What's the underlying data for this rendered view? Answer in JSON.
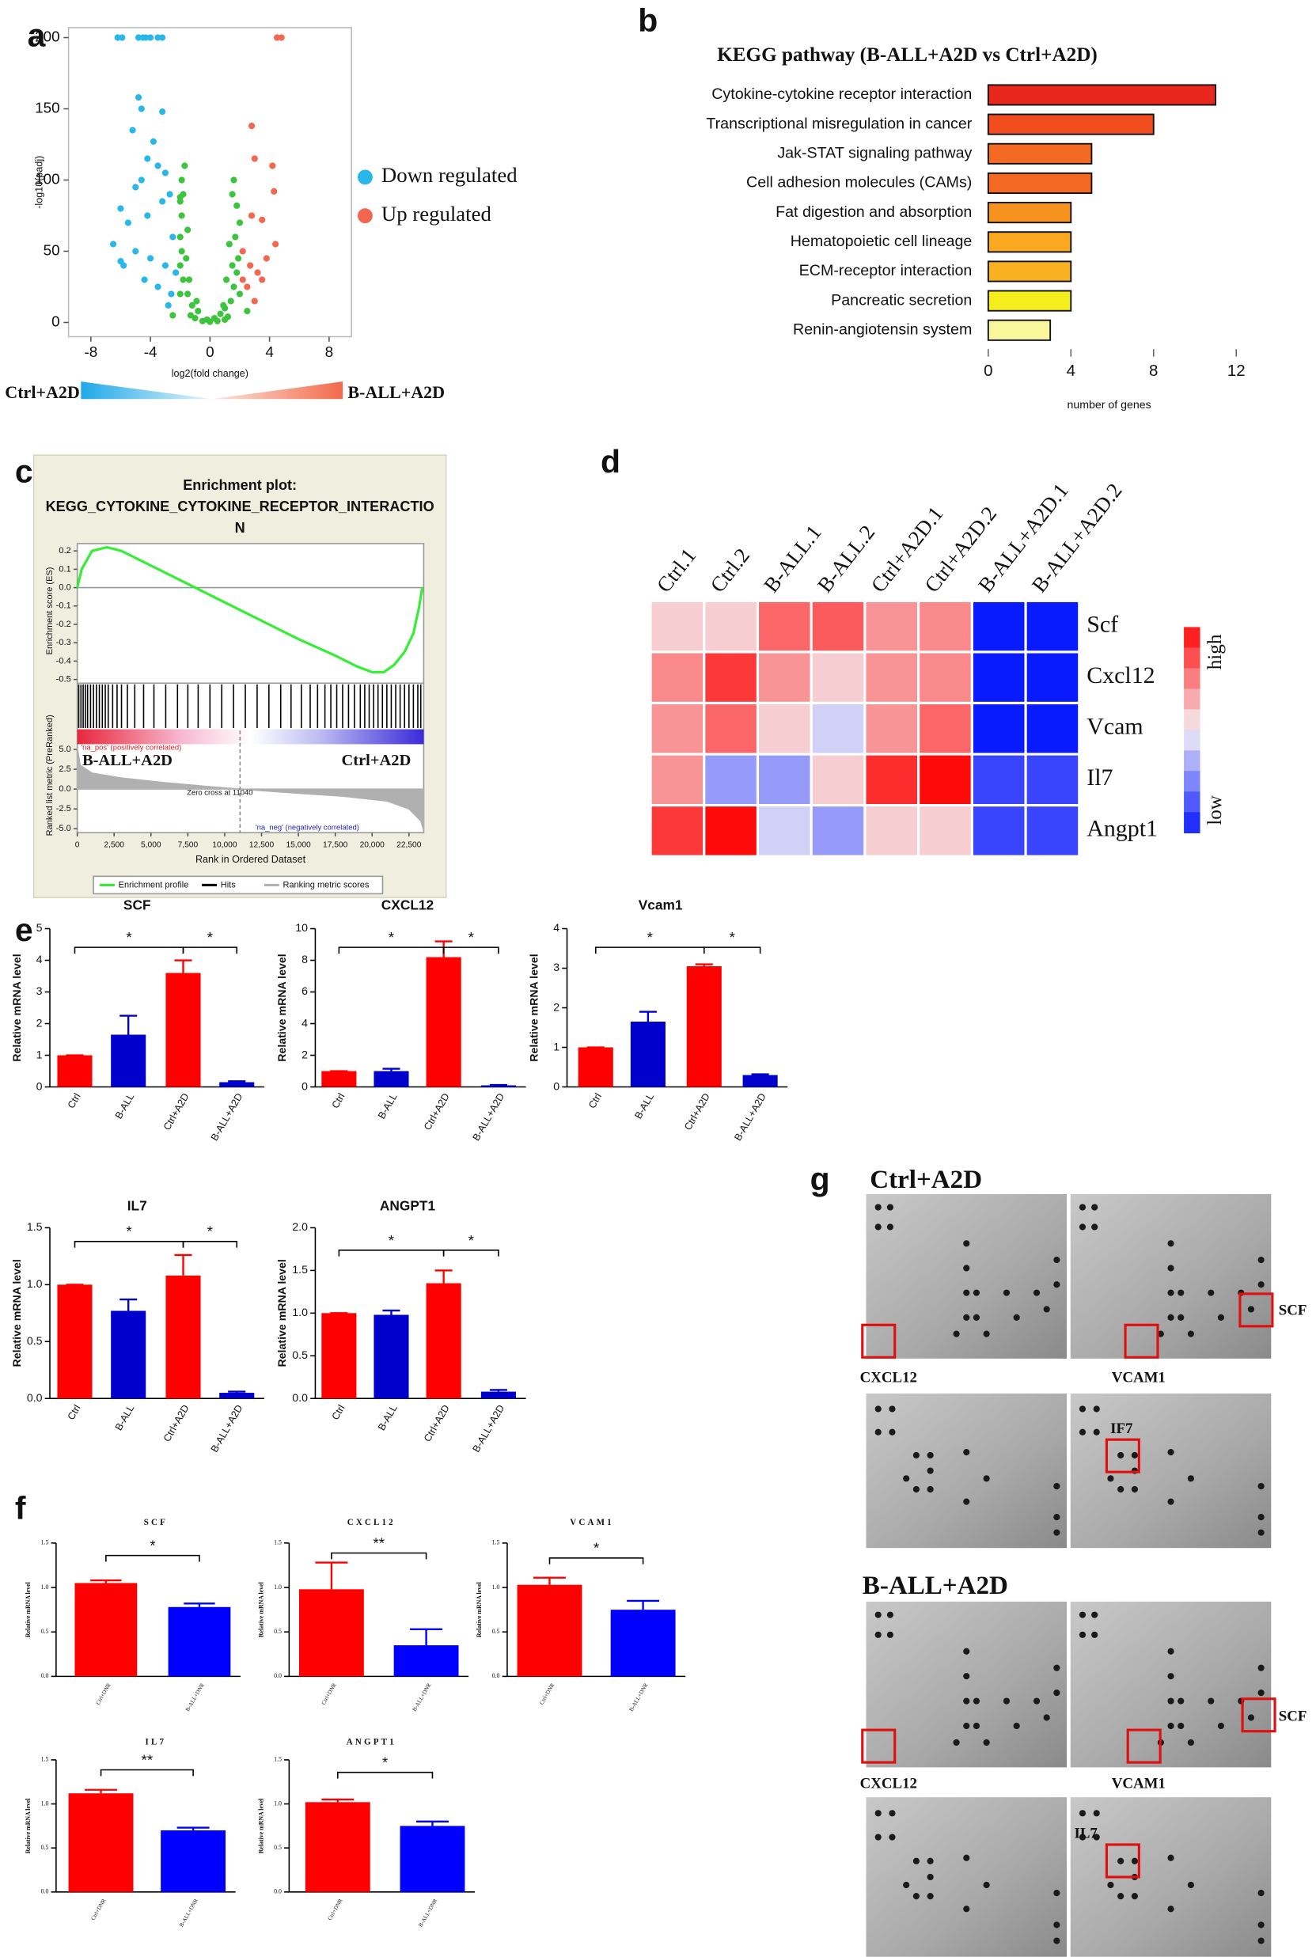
{
  "panel_labels": [
    "a",
    "b",
    "c",
    "d",
    "e",
    "f",
    "g"
  ],
  "chart_data": [
    {
      "type": "scatter",
      "xlabel": "log2(fold change)",
      "ylabel": "-log10(padj)",
      "xlim": [
        -9.5,
        9.5
      ],
      "xticks": [
        -8,
        -4,
        0,
        4,
        8
      ],
      "ylim": [
        -10,
        207
      ],
      "yticks": [
        0,
        50,
        100,
        150,
        200
      ],
      "legend": "right",
      "group_labels": [
        "Ctrl+A2D",
        "B-ALL+A2D"
      ],
      "series": [
        {
          "name": "Down regulated",
          "color": "#29b6e8",
          "x": [
            -6.2,
            -5.9,
            -4.8,
            -4.5,
            -4.3,
            -4,
            -3.5,
            -3.2,
            -4.8,
            -4.6,
            -5.2,
            -3.2,
            -3.8,
            -4.2,
            -3.5,
            -4.6,
            -5,
            -3,
            -6,
            -5.5,
            -4.2,
            -3.2,
            -2.7,
            -6.5,
            -5,
            -4,
            -3,
            -5.8,
            -2.5,
            -3.5,
            -2.6,
            -4.4,
            -2.3,
            -2.8,
            -6
          ],
          "values": [
            200,
            200,
            200,
            200,
            200,
            200,
            200,
            200,
            158,
            150,
            135,
            148,
            127,
            115,
            110,
            100,
            95,
            105,
            80,
            70,
            75,
            85,
            90,
            55,
            50,
            45,
            40,
            40,
            60,
            25,
            20,
            30,
            35,
            12,
            43
          ]
        },
        {
          "name": "Up regulated",
          "color": "#f2674f",
          "x": [
            4.5,
            4.8,
            2.8,
            3,
            4.2,
            4.3,
            3.5,
            2.8,
            4.4,
            2.2,
            2.7,
            3.5,
            3.8,
            2.5,
            3,
            2.2,
            3.2
          ],
          "values": [
            200,
            200,
            138,
            115,
            110,
            92,
            72,
            75,
            55,
            50,
            40,
            30,
            45,
            25,
            15,
            30,
            35
          ]
        },
        {
          "color": "#3cc43c",
          "x": [
            -0.2,
            0.3,
            -0.8,
            0.7,
            -1.2,
            1,
            -1.5,
            1.4,
            -1.8,
            1.6,
            -2,
            1.8,
            -1.9,
            1.9,
            -2,
            1.7,
            -1.9,
            2,
            -1.8,
            1.5,
            -1.9,
            1.6,
            -1.7,
            1.8,
            -1.3,
            1.2,
            -2,
            2,
            -0.5,
            0.5,
            -1,
            1,
            -1.6,
            1.5,
            -1.5,
            1.3,
            -2,
            -1.4,
            1.1,
            0,
            -2.5,
            2.5,
            -0.9,
            0.9,
            -2
          ],
          "values": [
            2,
            3,
            8,
            6,
            12,
            10,
            20,
            15,
            30,
            25,
            40,
            35,
            50,
            45,
            60,
            60,
            75,
            70,
            90,
            90,
            100,
            100,
            110,
            82,
            5,
            4,
            20,
            20,
            1,
            1,
            3,
            2,
            45,
            40,
            65,
            55,
            85,
            30,
            30,
            0.5,
            5,
            8,
            15,
            12,
            88
          ]
        }
      ]
    },
    {
      "type": "bar",
      "orientation": "horizontal",
      "title": "KEGG pathway (B-ALL+A2D vs Ctrl+A2D)",
      "xlabel": "number of genes",
      "categories": [
        "Cytokine-cytokine receptor interaction",
        "Transcriptional misregulation in cancer",
        "Jak-STAT signaling pathway",
        "Cell adhesion molecules (CAMs)",
        "Fat digestion and absorption",
        "Hematopoietic cell lineage",
        "ECM-receptor interaction",
        "Pancreatic secretion",
        "Renin-angiotensin system"
      ],
      "values": [
        11,
        8,
        5,
        5,
        4,
        4,
        4,
        4,
        3
      ],
      "colors": [
        "#e8261b",
        "#f24d1f",
        "#f56a22",
        "#f56a22",
        "#f7921f",
        "#f9a820",
        "#f9b021",
        "#f5ee1c",
        "#f9f79c"
      ],
      "xlim": [
        0,
        12
      ],
      "xticks": [
        0,
        4,
        8,
        12
      ]
    },
    {
      "type": "line",
      "title": [
        "Enrichment plot:",
        "KEGG_CYTOKINE_CYTOKINE_RECEPTOR_INTERACTIO",
        "N"
      ],
      "xlabel": "Rank in Ordered Dataset",
      "ylabel": "Enrichment score (ES)",
      "y2label": "Ranked list metric (PreRanked)",
      "xlim": [
        0,
        23500
      ],
      "xticks": [
        0,
        {
          "value": 2500,
          "label": "2,500"
        },
        {
          "value": 5000,
          "label": "5,000"
        },
        {
          "value": 7500,
          "label": "7,500"
        },
        {
          "value": 10000,
          "label": "10,000"
        },
        {
          "value": 12500,
          "label": "12,500"
        },
        {
          "value": 15000,
          "label": "15,000"
        },
        {
          "value": 17500,
          "label": "17,500"
        },
        {
          "value": 20000,
          "label": "20,000"
        },
        {
          "value": 22500,
          "label": "22,500"
        }
      ],
      "ylim": [
        -0.52,
        0.24
      ],
      "yticks": [
        0.2,
        0.1,
        {
          "value": 0,
          "label": "0.0"
        },
        -0.1,
        -0.2,
        -0.3,
        -0.4,
        -0.5
      ],
      "y2lim": [
        -5.5,
        5.5
      ],
      "y2ticks": [
        {
          "value": 5,
          "label": "5.0"
        },
        2.5,
        {
          "value": 0,
          "label": "0.0"
        },
        -2.5,
        {
          "value": -5,
          "label": "-5.0"
        }
      ],
      "pos_label": "'na_pos' (positively correlated)",
      "neg_label": "'na_neg' (negatively correlated)",
      "zero_cross": {
        "value": 11040,
        "label": "Zero cross at 11040"
      },
      "group_labels": [
        "B-ALL+A2D",
        "Ctrl+A2D"
      ],
      "series": [
        {
          "name": "Enrichment profile",
          "color": "#33ee33",
          "x": [
            0,
            300,
            1000,
            2000,
            3000,
            5000,
            7500,
            10000,
            12500,
            15000,
            17500,
            19000,
            20000,
            20800,
            21500,
            22200,
            22800,
            23200,
            23400
          ],
          "values": [
            0,
            0.1,
            0.2,
            0.22,
            0.2,
            0.12,
            0.02,
            -0.08,
            -0.18,
            -0.28,
            -0.37,
            -0.43,
            -0.46,
            -0.46,
            -0.42,
            -0.35,
            -0.25,
            -0.1,
            0
          ]
        },
        {
          "name": "Hits",
          "color": "#000000",
          "x": [
            100,
            250,
            400,
            550,
            700,
            900,
            1100,
            1300,
            1500,
            1700,
            1900,
            2100,
            2400,
            2700,
            3000,
            3400,
            3900,
            4500,
            5200,
            6000,
            6800,
            7500,
            8200,
            9000,
            9800,
            10600,
            11400,
            12200,
            13000,
            13800,
            14500,
            15200,
            15800,
            16300,
            16800,
            17200,
            17600,
            18000,
            18400,
            18800,
            19200,
            19500,
            19800,
            20100,
            20400,
            20700,
            21000,
            21300,
            21600,
            21900,
            22200,
            22500,
            22800,
            23100,
            23300
          ]
        },
        {
          "name": "Ranking metric scores",
          "color": "#b0b0b0",
          "axis": "y2",
          "x": [
            0,
            200,
            1000,
            3000,
            6000,
            9000,
            11040,
            14000,
            18000,
            21000,
            22500,
            23300,
            23500
          ],
          "values": [
            5.2,
            3,
            2,
            1.4,
            0.8,
            0.3,
            0,
            -0.4,
            -0.9,
            -1.5,
            -2.5,
            -4,
            -5.2
          ]
        }
      ]
    },
    {
      "type": "heatmap",
      "columns": [
        "Ctrl.1",
        "Ctrl.2",
        "B-ALL.1",
        "B-ALL.2",
        "Ctrl+A2D.1",
        "Ctrl+A2D.2",
        "B-ALL+A2D.1",
        "B-ALL+A2D.2"
      ],
      "rows": [
        "Scf",
        "Cxcl12",
        "Vcam",
        "Il7",
        "Angpt1"
      ],
      "values": [
        [
          0.15,
          0.15,
          0.6,
          0.65,
          0.4,
          0.45,
          -1,
          -1
        ],
        [
          0.45,
          0.8,
          0.4,
          0.15,
          0.4,
          0.45,
          -1,
          -1
        ],
        [
          0.4,
          0.6,
          0.15,
          -0.15,
          0.4,
          0.6,
          -1,
          -1
        ],
        [
          0.4,
          -0.4,
          -0.4,
          0.15,
          0.85,
          1,
          -0.8,
          -0.8
        ],
        [
          0.8,
          1,
          -0.15,
          -0.4,
          0.15,
          0.15,
          -0.8,
          -0.8
        ]
      ],
      "zlim": [
        -1,
        1
      ],
      "low_color": "#0a1aff",
      "mid_color": "#f4f0f4",
      "high_color": "#ff0a0a",
      "colorbar_labels": [
        "high",
        "low"
      ]
    },
    {
      "type": "bar",
      "title": "SCF",
      "ylabel": "Relative mRNA level",
      "categories": [
        "Ctrl",
        "B-ALL",
        "Ctrl+A2D",
        "B-ALL+A2D"
      ],
      "values": [
        1,
        1.65,
        3.6,
        0.15
      ],
      "errors": [
        0,
        0.6,
        0.4,
        0.03
      ],
      "colors": [
        "#ff0000",
        "#0000cc",
        "#ff0000",
        "#0000cc"
      ],
      "ylim": [
        0,
        5
      ],
      "yticks": [
        0,
        1,
        2,
        3,
        4,
        5
      ],
      "significance": [
        "*",
        "*"
      ]
    },
    {
      "type": "bar",
      "title": "CXCL12",
      "ylabel": "Relative mRNA level",
      "categories": [
        "Ctrl",
        "B-ALL",
        "Ctrl+A2D",
        "B-ALL+A2D"
      ],
      "values": [
        1,
        1,
        8.2,
        0.1
      ],
      "errors": [
        0,
        0.15,
        1,
        0.02
      ],
      "colors": [
        "#ff0000",
        "#0000cc",
        "#ff0000",
        "#0000cc"
      ],
      "ylim": [
        0,
        10
      ],
      "yticks": [
        0,
        2,
        4,
        6,
        8,
        10
      ],
      "significance": [
        "*",
        "*"
      ]
    },
    {
      "type": "bar",
      "title": "Vcam1",
      "ylabel": "Relative mRNA level",
      "categories": [
        "Ctrl",
        "B-ALL",
        "Ctrl+A2D",
        "B-ALL+A2D"
      ],
      "values": [
        1,
        1.65,
        3.05,
        0.3
      ],
      "errors": [
        0,
        0.25,
        0.05,
        0.02
      ],
      "colors": [
        "#ff0000",
        "#0000cc",
        "#ff0000",
        "#0000cc"
      ],
      "ylim": [
        0,
        4
      ],
      "yticks": [
        0,
        1,
        2,
        3,
        4
      ],
      "significance": [
        "*",
        "*"
      ]
    },
    {
      "type": "bar",
      "title": "IL7",
      "ylabel": "Relative mRNA level",
      "categories": [
        "Ctrl",
        "B-ALL",
        "Ctrl+A2D",
        "B-ALL+A2D"
      ],
      "values": [
        1,
        0.77,
        1.08,
        0.05
      ],
      "errors": [
        0,
        0.1,
        0.18,
        0.01
      ],
      "colors": [
        "#ff0000",
        "#0000cc",
        "#ff0000",
        "#0000cc"
      ],
      "ylim": [
        0,
        1.5
      ],
      "yticks": [
        {
          "value": 0,
          "label": "0.0"
        },
        0.5,
        {
          "value": 1,
          "label": "1.0"
        },
        1.5
      ],
      "significance": [
        "*",
        "*"
      ]
    },
    {
      "type": "bar",
      "title": "ANGPT1",
      "ylabel": "Relative mRNA level",
      "categories": [
        "Ctrl",
        "B-ALL",
        "Ctrl+A2D",
        "B-ALL+A2D"
      ],
      "values": [
        1,
        0.98,
        1.35,
        0.08
      ],
      "errors": [
        0,
        0.05,
        0.15,
        0.02
      ],
      "colors": [
        "#ff0000",
        "#0000cc",
        "#ff0000",
        "#0000cc"
      ],
      "ylim": [
        0,
        2
      ],
      "yticks": [
        {
          "value": 0,
          "label": "0.0"
        },
        0.5,
        {
          "value": 1,
          "label": "1.0"
        },
        1.5,
        {
          "value": 2,
          "label": "2.0"
        }
      ],
      "significance": [
        "*",
        "*"
      ]
    },
    {
      "type": "bar",
      "title": "SCF",
      "ylabel": "Relative mRNA level",
      "categories": [
        "Ctrl+DNR",
        "B-ALL+DNR"
      ],
      "values": [
        1.05,
        0.78
      ],
      "errors": [
        0.03,
        0.04
      ],
      "colors": [
        "#ff0000",
        "#0000ff"
      ],
      "ylim": [
        0,
        1.5
      ],
      "yticks": [
        {
          "value": 0,
          "label": "0.0"
        },
        0.5,
        {
          "value": 1,
          "label": "1.0"
        },
        1.5
      ],
      "significance": [
        "*"
      ]
    },
    {
      "type": "bar",
      "title": "CXCL12",
      "ylabel": "Relative mRNA level",
      "categories": [
        "Ctrl+DNR",
        "B-ALL+DNR"
      ],
      "values": [
        0.98,
        0.35
      ],
      "errors": [
        0.3,
        0.18
      ],
      "colors": [
        "#ff0000",
        "#0000ff"
      ],
      "ylim": [
        0,
        1.5
      ],
      "yticks": [
        {
          "value": 0,
          "label": "0.0"
        },
        0.5,
        {
          "value": 1,
          "label": "1.0"
        },
        1.5
      ],
      "significance": [
        "**"
      ]
    },
    {
      "type": "bar",
      "title": "VCAM1",
      "ylabel": "Relative mRNA level",
      "categories": [
        "Ctrl+DNR",
        "B-ALL+DNR"
      ],
      "values": [
        1.03,
        0.75
      ],
      "errors": [
        0.08,
        0.1
      ],
      "colors": [
        "#ff0000",
        "#0000ff"
      ],
      "ylim": [
        0,
        1.5
      ],
      "yticks": [
        {
          "value": 0,
          "label": "0.0"
        },
        0.5,
        {
          "value": 1,
          "label": "1.0"
        },
        1.5
      ],
      "significance": [
        "*"
      ]
    },
    {
      "type": "bar",
      "title": "IL7",
      "ylabel": "Relative mRNA level",
      "categories": [
        "Ctrl+DNR",
        "B-ALL+DNR"
      ],
      "values": [
        1.12,
        0.7
      ],
      "errors": [
        0.04,
        0.03
      ],
      "colors": [
        "#ff0000",
        "#0000ff"
      ],
      "ylim": [
        0,
        1.5
      ],
      "yticks": [
        {
          "value": 0,
          "label": "0.0"
        },
        0.5,
        {
          "value": 1,
          "label": "1.0"
        },
        1.5
      ],
      "significance": [
        "**"
      ]
    },
    {
      "type": "bar",
      "title": "ANGPT1",
      "ylabel": "Relative mRNA level",
      "categories": [
        "Ctrl+DNR",
        "B-ALL+DNR"
      ],
      "values": [
        1.02,
        0.75
      ],
      "errors": [
        0.03,
        0.05
      ],
      "colors": [
        "#ff0000",
        "#0000ff"
      ],
      "ylim": [
        0,
        1.5
      ],
      "yticks": [
        {
          "value": 0,
          "label": "0.0"
        },
        0.5,
        {
          "value": 1,
          "label": "1.0"
        },
        1.5
      ],
      "significance": [
        "*"
      ]
    }
  ],
  "blots": [
    {
      "title": "Ctrl+A2D",
      "labels": [
        "SCF",
        "CXCL12",
        "VCAM1",
        "IF7"
      ]
    },
    {
      "title": "B-ALL+A2D",
      "labels": [
        "SCF",
        "CXCL12",
        "VCAM1",
        "IL7"
      ]
    }
  ]
}
